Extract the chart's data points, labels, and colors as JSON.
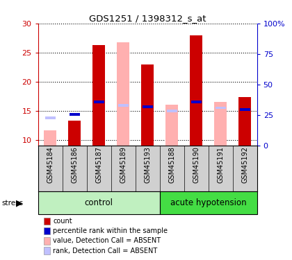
{
  "title": "GDS1251 / 1398312_s_at",
  "samples": [
    "GSM45184",
    "GSM45186",
    "GSM45187",
    "GSM45189",
    "GSM45193",
    "GSM45188",
    "GSM45190",
    "GSM45191",
    "GSM45192"
  ],
  "count_values": [
    null,
    13.3,
    26.3,
    null,
    23.0,
    null,
    28.0,
    null,
    17.3
  ],
  "rank_values": [
    null,
    14.4,
    16.5,
    null,
    15.7,
    null,
    16.5,
    null,
    15.2
  ],
  "absent_value_values": [
    11.6,
    null,
    null,
    26.8,
    null,
    16.0,
    null,
    16.5,
    null
  ],
  "absent_rank_values": [
    13.8,
    null,
    null,
    15.9,
    null,
    15.0,
    null,
    15.5,
    null
  ],
  "ylim_left": [
    9,
    30
  ],
  "ylim_right": [
    0,
    100
  ],
  "yticks_left": [
    10,
    15,
    20,
    25,
    30
  ],
  "yticks_right": [
    0,
    25,
    50,
    75,
    100
  ],
  "yticklabels_right": [
    "0",
    "25",
    "50",
    "75",
    "100%"
  ],
  "bar_width": 0.5,
  "colors": {
    "count": "#cc0000",
    "rank": "#0000cc",
    "absent_value": "#ffb0b0",
    "absent_rank": "#c0c0ff",
    "control_bg": "#c0f0c0",
    "acute_bg": "#44dd44",
    "tick_left": "#cc0000",
    "tick_right": "#0000cc",
    "sample_bg": "#d0d0d0"
  },
  "control_count": 5,
  "acute_count": 4,
  "legend_items": [
    {
      "label": "count",
      "color": "#cc0000"
    },
    {
      "label": "percentile rank within the sample",
      "color": "#0000cc"
    },
    {
      "label": "value, Detection Call = ABSENT",
      "color": "#ffb0b0"
    },
    {
      "label": "rank, Detection Call = ABSENT",
      "color": "#c0c0ff"
    }
  ]
}
